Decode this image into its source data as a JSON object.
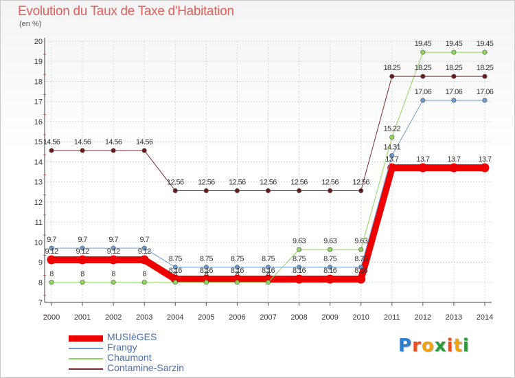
{
  "title": "Evolution du Taux de Taxe d'Habitation",
  "subtitle": "(en %)",
  "logo": {
    "text": "Proxiti",
    "colors": [
      "#2a7fd0",
      "#e8501e",
      "#f2a20c",
      "#2a9a3a",
      "#e8501e",
      "#f2a20c",
      "#2a9a3a"
    ]
  },
  "chart_data": {
    "type": "line",
    "title": "Evolution du Taux de Taxe d'Habitation",
    "ylabel": "(en %)",
    "xlabel": "",
    "x": [
      "2000",
      "2001",
      "2002",
      "2003",
      "2004",
      "2005",
      "2006",
      "2007",
      "2008",
      "2009",
      "2010",
      "2011",
      "2012",
      "2013",
      "2014"
    ],
    "ylim": [
      7,
      20
    ],
    "yticks": [
      "7",
      "8",
      "9",
      "10",
      "11",
      "12",
      "13",
      "14",
      "15",
      "16",
      "17",
      "18",
      "19",
      "20"
    ],
    "grid": true,
    "legend_position": "bottom-left",
    "series": [
      {
        "name": "MUSIèGES",
        "color": "#ee0000",
        "width": 10,
        "values": [
          9.12,
          9.12,
          9.12,
          9.12,
          8.16,
          8.16,
          8.16,
          8.16,
          8.16,
          8.16,
          8.16,
          13.7,
          13.7,
          13.7,
          13.7
        ],
        "labels": [
          "9.12",
          "9.12",
          "9.12",
          "9.12",
          "8.16",
          "8.16",
          "8.16",
          "8.16",
          "8.16",
          "8.16",
          "8.16",
          "13.7",
          "13.7",
          "13.7",
          "13.7"
        ]
      },
      {
        "name": "Frangy",
        "color": "#6b9bd0",
        "width": 1,
        "values": [
          9.7,
          9.7,
          9.7,
          9.7,
          8.75,
          8.75,
          8.75,
          8.75,
          8.75,
          8.75,
          8.75,
          14.31,
          17.06,
          17.06,
          17.06
        ],
        "labels": [
          "9.7",
          "9.7",
          "9.7",
          "9.7",
          "8.75",
          "8.75",
          "8.75",
          "8.75",
          "8.75",
          "8.75",
          "8.75",
          "14.31",
          "17.06",
          "17.06",
          "17.06"
        ]
      },
      {
        "name": "Chaumont",
        "color": "#8cd65a",
        "width": 1,
        "values": [
          8,
          8,
          8,
          8,
          8,
          8,
          8,
          8,
          9.63,
          9.63,
          9.63,
          15.22,
          19.45,
          19.45,
          19.45
        ],
        "labels": [
          "8",
          "8",
          "8",
          "8",
          "8",
          "8",
          "8",
          "8",
          "9.63",
          "9.63",
          "9.63",
          "15.22",
          "19.45",
          "19.45",
          "19.45"
        ]
      },
      {
        "name": "Contamine-Sarzin",
        "color": "#7a2a2a",
        "width": 1,
        "values": [
          14.56,
          14.56,
          14.56,
          14.56,
          12.56,
          12.56,
          12.56,
          12.56,
          12.56,
          12.56,
          12.56,
          18.25,
          18.25,
          18.25,
          18.25
        ],
        "labels": [
          "14.56",
          "14.56",
          "14.56",
          "14.56",
          "12.56",
          "12.56",
          "12.56",
          "12.56",
          "12.56",
          "12.56",
          "12.56",
          "18.25",
          "18.25",
          "18.25",
          "18.25"
        ]
      }
    ]
  }
}
